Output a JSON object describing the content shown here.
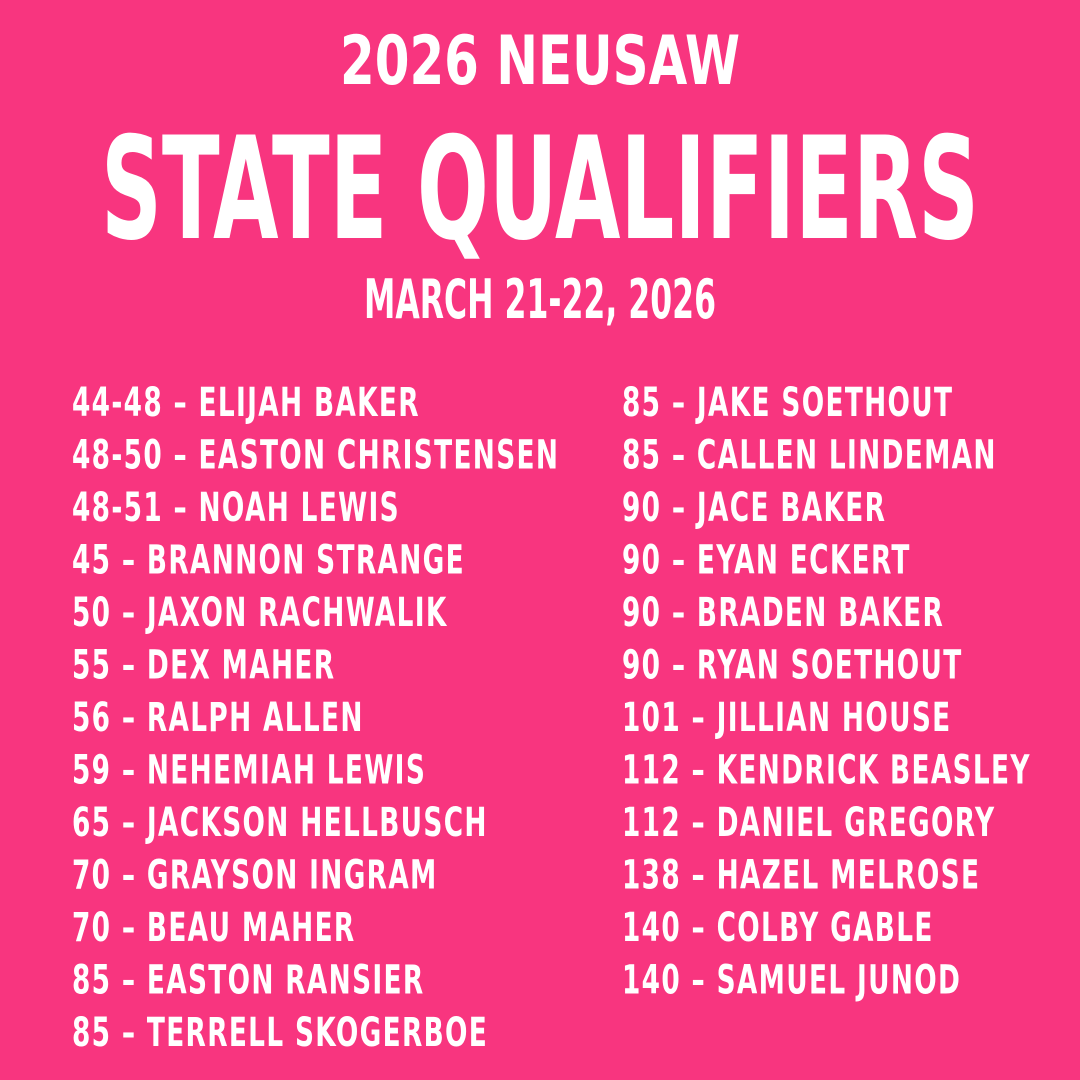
{
  "header": {
    "subtitle": "2026 NEUSAW",
    "title": "STATE QUALIFIERS",
    "date": "MARCH 21-22, 2026"
  },
  "columns": [
    [
      "44-48 – ELIJAH BAKER",
      "48-50 – EASTON CHRISTENSEN",
      "48-51 – NOAH LEWIS",
      "45 – BRANNON STRANGE",
      "50 – JAXON RACHWALIK",
      "55 – DEX MAHER",
      "56 – RALPH ALLEN",
      "59 – NEHEMIAH LEWIS",
      "65 – JACKSON HELLBUSCH",
      "70 – GRAYSON INGRAM",
      "70 – BEAU MAHER",
      "85 – EASTON RANSIER",
      "85 – TERRELL SKOGERBOE"
    ],
    [
      "85 – JAKE SOETHOUT",
      "85 – CALLEN LINDEMAN",
      "90 – JACE BAKER",
      "90 – EYAN ECKERT",
      "90 – BRADEN BAKER",
      "90 – RYAN SOETHOUT",
      "101 – JILLIAN HOUSE",
      "112 – KENDRICK BEASLEY",
      "112 – DANIEL GREGORY",
      "138 – HAZEL MELROSE",
      "140 – COLBY GABLE",
      "140 – SAMUEL JUNOD"
    ]
  ]
}
